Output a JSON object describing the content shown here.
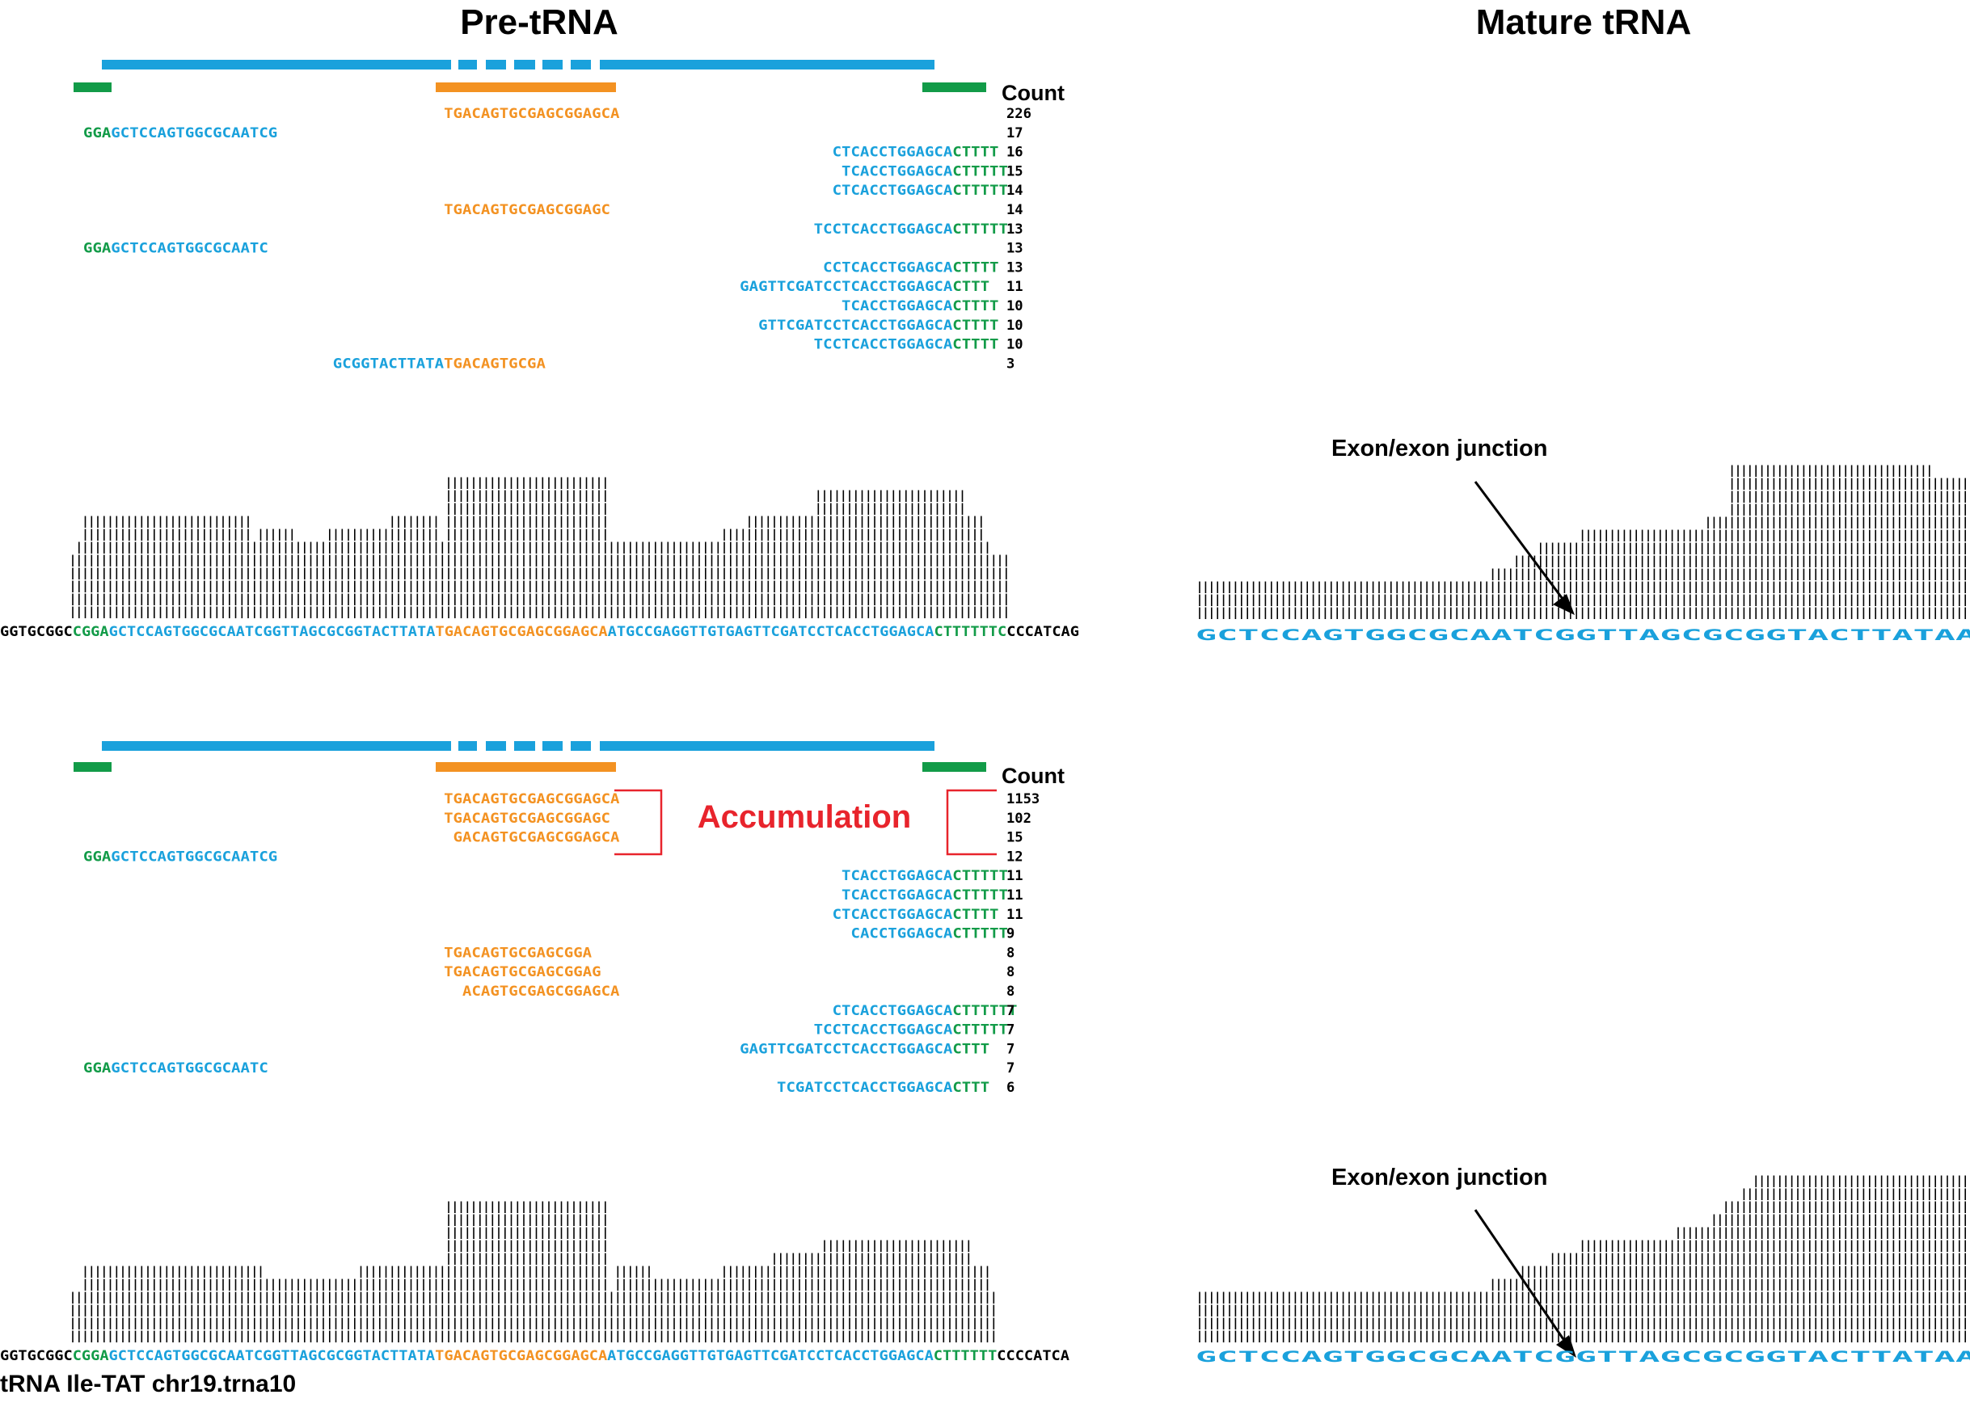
{
  "titles": {
    "pre": "Pre-tRNA",
    "mature": "Mature tRNA"
  },
  "colors": {
    "blue": "#1aa1dc",
    "orange": "#f39222",
    "green": "#129b48",
    "black": "#000000",
    "red": "#e8242c"
  },
  "count_header": "Count",
  "accumulation_label": "Accumulation",
  "junction_label": "Exon/exon junction",
  "caption": "tRNA Ile-TAT chr19.trna10",
  "top": {
    "reads": [
      {
        "parts": [
          [
            "o",
            "TGACAGTGCGAGCGGAGCA"
          ]
        ],
        "count": "226"
      },
      {
        "parts": [
          [
            "g",
            "GGA"
          ],
          [
            "b",
            "GCTCCAGTGGCGCAATCG"
          ]
        ],
        "count": "17"
      },
      {
        "parts": [
          [
            "b",
            "CTCACCTGGAGCA"
          ],
          [
            "g",
            "CTTTT"
          ]
        ],
        "count": "16"
      },
      {
        "parts": [
          [
            "b",
            "TCACCTGGAGCA"
          ],
          [
            "g",
            "CTTTTT"
          ]
        ],
        "count": "15"
      },
      {
        "parts": [
          [
            "b",
            "CTCACCTGGAGCA"
          ],
          [
            "g",
            "CTTTTT"
          ]
        ],
        "count": "14"
      },
      {
        "parts": [
          [
            "o",
            "TGACAGTGCGAGCGGAGC"
          ]
        ],
        "count": "14"
      },
      {
        "parts": [
          [
            "b",
            "TCCTCACCTGGAGCA"
          ],
          [
            "g",
            "CTTTTT"
          ]
        ],
        "count": "13"
      },
      {
        "parts": [
          [
            "g",
            "GGA"
          ],
          [
            "b",
            "GCTCCAGTGGCGCAATC"
          ]
        ],
        "count": "13"
      },
      {
        "parts": [
          [
            "b",
            "CCTCACCTGGAGCA"
          ],
          [
            "g",
            "CTTTT"
          ]
        ],
        "count": "13"
      },
      {
        "parts": [
          [
            "b",
            "GAGTTCGATCCTCACCTGGAGCA"
          ],
          [
            "g",
            "CTTT"
          ]
        ],
        "count": "11"
      },
      {
        "parts": [
          [
            "b",
            "TCACCTGGAGCA"
          ],
          [
            "g",
            "CTTTT"
          ]
        ],
        "count": "10"
      },
      {
        "parts": [
          [
            "b",
            "GTTCGATCCTCACCTGGAGCA"
          ],
          [
            "g",
            "CTTTT"
          ]
        ],
        "count": "10"
      },
      {
        "parts": [
          [
            "b",
            "TCCTCACCTGGAGCA"
          ],
          [
            "g",
            "CTTTT"
          ]
        ],
        "count": "10"
      },
      {
        "parts": [
          [
            "b",
            "GCGGTACTTATA"
          ],
          [
            "o",
            "TGACAGTGCGA"
          ]
        ],
        "count": "3"
      }
    ],
    "sequence": [
      [
        "k",
        "GGTGCGGC"
      ],
      [
        "g",
        "CGGA"
      ],
      [
        "b",
        "GCTCCAGTGGCGCAATCGGTTAGCGCGGTACTTATA"
      ],
      [
        "o",
        "TGACAGTGCGAGCGGAGCA"
      ],
      [
        "b",
        "ATGCCGAGGTTGTGAGTTCGATCCTCACCTGGAGCA"
      ],
      [
        "g",
        "CTTTTTTC"
      ],
      [
        "k",
        "CCCATCAG"
      ]
    ],
    "coverage_levels": [
      0,
      6,
      6,
      7,
      7,
      7,
      7,
      7,
      7,
      7,
      7,
      7,
      7,
      7,
      7,
      7,
      7,
      7,
      7,
      7,
      7,
      7,
      7,
      7,
      7,
      6,
      6,
      6,
      6,
      6,
      6,
      6,
      6,
      6,
      5,
      5,
      5,
      5,
      5,
      5,
      5,
      5,
      6,
      6,
      6,
      6,
      6,
      6,
      6,
      6,
      6,
      6,
      6,
      6,
      6,
      6,
      6,
      6,
      6,
      6,
      6,
      6,
      6,
      6,
      6,
      6,
      6,
      6,
      7,
      7,
      7,
      7,
      7,
      7,
      7,
      7,
      7,
      7,
      7,
      7,
      7,
      7,
      7,
      7,
      7,
      7,
      7,
      7,
      7,
      7,
      7,
      7,
      7,
      7,
      7,
      7,
      7,
      7,
      7,
      7,
      7,
      7,
      7,
      7,
      7,
      7,
      7,
      7,
      7,
      7,
      7,
      7,
      7,
      7,
      7,
      7,
      7,
      7,
      7,
      7,
      7,
      7,
      7,
      7,
      7,
      7,
      7,
      7,
      7,
      7,
      7,
      7,
      7,
      7,
      6,
      6,
      6,
      6,
      6,
      6,
      6,
      6,
      6,
      6,
      6,
      6,
      6,
      6,
      6,
      6,
      6,
      6,
      6,
      6,
      6,
      6,
      6,
      6,
      6,
      6,
      6,
      6,
      6,
      6,
      6,
      6,
      6,
      6,
      6,
      6,
      6,
      6,
      6,
      6,
      6,
      7,
      7,
      7,
      7,
      7,
      7,
      7,
      7,
      7,
      7,
      7,
      7,
      7,
      7,
      7,
      7,
      7,
      7,
      7,
      7,
      7,
      7,
      7,
      7,
      7,
      7,
      7,
      7,
      7,
      7,
      7,
      7,
      7,
      7,
      7,
      7,
      7,
      7,
      7,
      7,
      7,
      7,
      6,
      6,
      6,
      6,
      6,
      6,
      6,
      6,
      6,
      6,
      6,
      6,
      6,
      6,
      6,
      6,
      0,
      0
    ],
    "coverage_extra": [
      [
        1,
        1,
        1,
        1,
        1,
        1,
        1,
        1,
        1,
        1,
        1,
        1,
        1,
        1,
        1,
        1,
        1,
        1,
        1,
        1,
        1,
        1,
        1,
        1,
        1,
        1,
        1,
        1,
        1,
        1,
        1,
        1,
        1,
        1,
        1,
        1,
        1,
        1,
        1,
        1,
        1,
        1,
        1,
        1,
        1,
        1,
        1,
        1,
        1,
        1,
        1,
        1,
        1,
        1,
        1,
        1,
        1,
        1,
        1,
        1,
        1,
        1,
        1,
        1,
        1,
        1,
        1,
        1,
        1,
        1,
        1,
        1,
        1,
        1,
        1,
        1,
        1,
        1,
        1,
        1,
        1,
        1,
        1,
        1,
        1,
        1,
        1,
        1,
        1,
        1,
        1,
        1,
        1,
        1,
        1,
        1,
        1,
        1,
        1,
        1,
        1,
        1,
        1,
        1,
        1,
        1,
        1,
        1,
        1,
        1,
        1,
        1,
        1,
        1,
        1,
        1,
        1,
        1,
        1,
        1,
        1,
        1,
        1,
        1,
        1,
        1,
        1,
        1,
        1,
        1,
        1,
        1,
        1,
        1,
        1,
        1,
        1,
        1,
        1,
        1,
        1,
        1,
        1,
        1,
        1,
        1,
        1,
        1,
        1,
        1,
        1,
        1,
        1,
        1,
        1,
        1,
        1,
        1,
        1,
        1,
        1,
        1,
        1,
        1,
        1,
        1,
        1,
        1,
        1,
        1,
        1,
        1,
        1,
        1,
        1,
        1,
        1,
        1,
        1,
        1,
        1,
        1,
        1,
        1,
        1,
        1,
        1,
        1,
        1,
        1,
        1,
        1,
        1,
        1,
        1,
        1,
        1,
        1,
        1,
        1,
        1,
        1,
        1,
        1,
        1,
        1,
        1,
        1,
        1,
        1,
        1,
        1,
        1,
        1,
        1,
        1,
        1,
        1,
        1,
        1,
        1,
        1,
        1,
        1,
        1,
        1,
        1,
        1,
        1,
        1,
        1,
        1,
        1,
        1,
        1,
        1,
        1,
        1,
        1,
        1,
        1,
        1,
        1,
        1,
        1,
        1,
        1,
        1,
        1,
        1,
        1,
        1,
        1,
        1,
        1,
        1,
        1,
        1,
        1,
        1,
        1,
        1,
        1,
        1,
        1,
        1,
        1,
        1,
        1,
        1,
        1,
        1,
        1,
        1,
        1,
        1,
        1,
        1,
        1
      ]
    ]
  },
  "bottom": {
    "reads": [
      {
        "parts": [
          [
            "o",
            "TGACAGTGCGAGCGGAGCA"
          ]
        ],
        "count": "1153"
      },
      {
        "parts": [
          [
            "o",
            "TGACAGTGCGAGCGGAGC"
          ]
        ],
        "count": "102"
      },
      {
        "parts": [
          [
            "o",
            "GACAGTGCGAGCGGAGCA"
          ]
        ],
        "count": "15"
      },
      {
        "parts": [
          [
            "g",
            "GGA"
          ],
          [
            "b",
            "GCTCCAGTGGCGCAATCG"
          ]
        ],
        "count": "12"
      },
      {
        "parts": [
          [
            "b",
            "TCACCTGGAGCA"
          ],
          [
            "g",
            "CTTTTT"
          ]
        ],
        "count": "11"
      },
      {
        "parts": [
          [
            "b",
            "TCACCTGGAGCA"
          ],
          [
            "g",
            "CTTTTT"
          ]
        ],
        "count": "11"
      },
      {
        "parts": [
          [
            "b",
            "CTCACCTGGAGCA"
          ],
          [
            "g",
            "CTTTT"
          ]
        ],
        "count": "11"
      },
      {
        "parts": [
          [
            "b",
            "CACCTGGAGCA"
          ],
          [
            "g",
            "CTTTTT"
          ]
        ],
        "count": "9"
      },
      {
        "parts": [
          [
            "o",
            "TGACAGTGCGAGCGGA"
          ]
        ],
        "count": "8"
      },
      {
        "parts": [
          [
            "o",
            "TGACAGTGCGAGCGGAG"
          ]
        ],
        "count": "8"
      },
      {
        "parts": [
          [
            "o",
            "ACAGTGCGAGCGGAGCA"
          ]
        ],
        "count": "8"
      },
      {
        "parts": [
          [
            "b",
            "CTCACCTGGAGCA"
          ],
          [
            "g",
            "CTTTTTT"
          ]
        ],
        "count": "7"
      },
      {
        "parts": [
          [
            "b",
            "TCCTCACCTGGAGCA"
          ],
          [
            "g",
            "CTTTTT"
          ]
        ],
        "count": "7"
      },
      {
        "parts": [
          [
            "b",
            "GAGTTCGATCCTCACCTGGAGCA"
          ],
          [
            "g",
            "CTTT"
          ]
        ],
        "count": "7"
      },
      {
        "parts": [
          [
            "g",
            "GGA"
          ],
          [
            "b",
            "GCTCCAGTGGCGCAATC"
          ]
        ],
        "count": "7"
      },
      {
        "parts": [
          [
            "b",
            "TCGATCCTCACCTGGAGCA"
          ],
          [
            "g",
            "CTTT"
          ]
        ],
        "count": "6"
      }
    ],
    "sequence": [
      [
        "k",
        "GGTGCGGC"
      ],
      [
        "g",
        "CGGA"
      ],
      [
        "b",
        "GCTCCAGTGGCGCAATCGGTTAGCGCGGTACTTATA"
      ],
      [
        "o",
        "TGACAGTGCGAGCGGAGCA"
      ],
      [
        "b",
        "ATGCCGAGGTTGTGAGTTCGATCCTCACCTGGAGCA"
      ],
      [
        "g",
        "CTTTTTT"
      ],
      [
        "k",
        "CCCCATCA"
      ]
    ]
  },
  "mature_top": {
    "sequence": [
      [
        "b",
        "GCTCCAGTGGCGCAATCGGTTAGCGCGGTACTTATAATGCCGAGGTTGTGAGTTCGATCCTCACCTGGAGCA"
      ],
      [
        "k",
        "CCA"
      ]
    ]
  },
  "mature_bottom": {
    "sequence": [
      [
        "b",
        "GCTCCAGTGGCGCAATCGGTTAGCGCGGTACTTATAATGCCGAGGTTGTGAGTTCGATCCTCACCTGGAGCA"
      ],
      [
        "k",
        "CCA"
      ]
    ]
  }
}
